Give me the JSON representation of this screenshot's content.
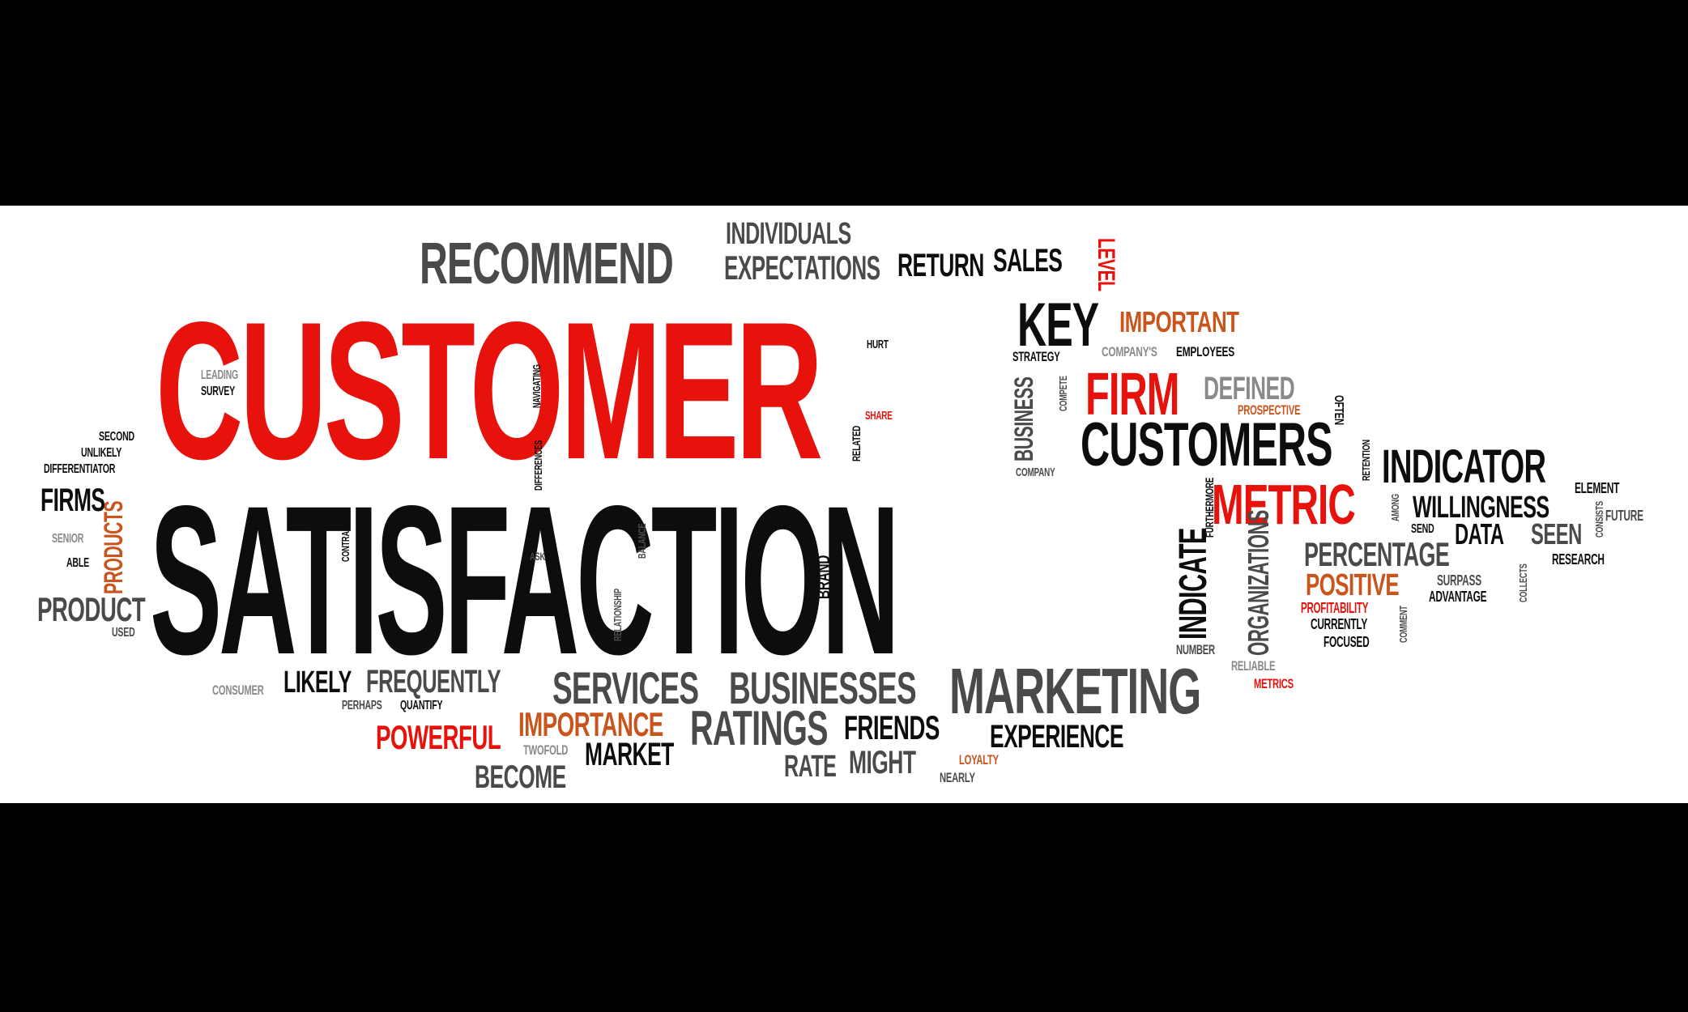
{
  "colors": {
    "background": "#000000",
    "band": "#ffffff",
    "red": "#e8120c",
    "orange": "#c9541c",
    "black": "#0d0d0d",
    "dark_gray": "#4a4a4a",
    "gray": "#8a8a8a"
  },
  "words": {
    "customer": "CUSTOMER",
    "satisfaction": "SATISFACTION",
    "recommend": "RECOMMEND",
    "individuals": "INDIVIDUALS",
    "expectations": "EXPECTATIONS",
    "return": "RETURN",
    "sales": "SALES",
    "level": "LEVEL",
    "key": "KEY",
    "important": "IMPORTANT",
    "strategy": "STRATEGY",
    "companys": "COMPANY'S",
    "employees": "EMPLOYEES",
    "firm": "FIRM",
    "defined": "DEFINED",
    "prospective": "PROSPECTIVE",
    "often": "OFTEN",
    "customers": "CUSTOMERS",
    "indicator": "INDICATOR",
    "metric": "METRIC",
    "willingness": "WILLINGNESS",
    "data": "DATA",
    "seen": "SEEN",
    "element": "ELEMENT",
    "future": "FUTURE",
    "research": "RESEARCH",
    "percentage": "PERCENTAGE",
    "positive": "POSITIVE",
    "profitability": "PROFITABILITY",
    "currently": "CURRENTLY",
    "focused": "FOCUSED",
    "surpass": "SURPASS",
    "advantage": "ADVANTAGE",
    "send": "SEND",
    "number": "NUMBER",
    "reliable": "RELIABLE",
    "metrics": "METRICS",
    "marketing": "MARKETING",
    "experience": "EXPERIENCE",
    "services": "SERVICES",
    "businesses": "BUSINESSES",
    "ratings": "RATINGS",
    "friends": "FRIENDS",
    "rate": "RATE",
    "might": "MIGHT",
    "loyalty": "LOYALTY",
    "nearly": "NEARLY",
    "importance": "IMPORTANCE",
    "powerful": "POWERFUL",
    "twofold": "TWOFOLD",
    "market": "MARKET",
    "become": "BECOME",
    "consumer": "CONSUMER",
    "likely": "LIKELY",
    "frequently": "FREQUENTLY",
    "perhaps": "PERHAPS",
    "quantify": "QUANTIFY",
    "product": "PRODUCT",
    "used": "USED",
    "products": "PRODUCTS",
    "firms": "FIRMS",
    "senior": "SENIOR",
    "able": "ABLE",
    "second": "SECOND",
    "unlikely": "UNLIKELY",
    "differentiator": "DIFFERENTIATOR",
    "leading": "LEADING",
    "survey": "SURVEY",
    "hurt": "HURT",
    "share": "SHARE",
    "related": "RELATED",
    "business": "BUSINESS",
    "company": "COMPANY",
    "compete": "COMPETE",
    "indicate": "INDICATE",
    "organizations": "ORGANIZATIONS",
    "furthermore": "FURTHERMORE",
    "brand": "BRAND",
    "ask": "ASK",
    "contract": "CONTRACT",
    "relationship": "RELATIONSHIP",
    "balance": "BALANCE",
    "ignite": "IGNITE",
    "navigating": "NAVIGATING",
    "differences": "DIFFERENCES",
    "retention": "RETENTION",
    "among": "AMONG",
    "consists": "CONSISTS",
    "collects": "COLLECTS",
    "comment": "COMMENT"
  }
}
